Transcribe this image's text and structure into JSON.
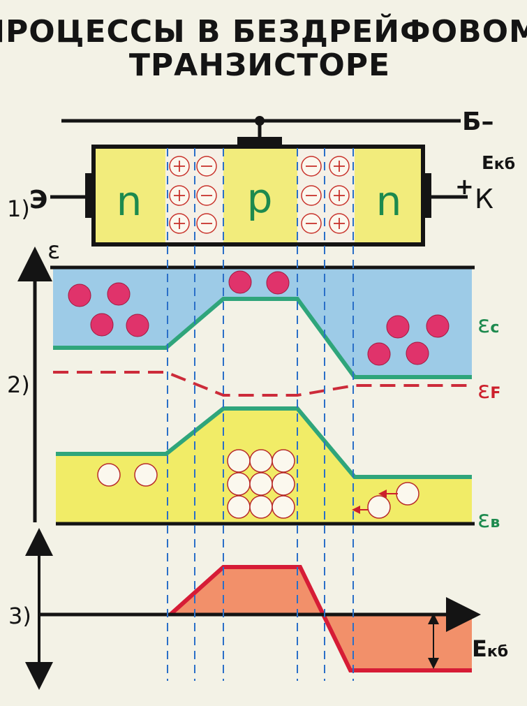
{
  "title": {
    "line1": "ПРОЦЕССЫ В БЕЗДРЕЙФОВОМ",
    "line2": "ТРАНЗИСТОРЕ"
  },
  "section1": {
    "number": "1)",
    "emitter_label": "Э",
    "base_label": "Б–",
    "collector_label": "К",
    "collector_sign": "+",
    "bias_label": "Eкб",
    "regions": [
      "n",
      "p",
      "n"
    ]
  },
  "section2": {
    "number": "2)",
    "energy_axis": "ε",
    "conduction_label": "εc",
    "fermi_label": "εF",
    "valence_label": "εв"
  },
  "section3": {
    "number": "3)",
    "voltage_label": "Eкб"
  },
  "colors": {
    "n_region": "#f2ec7c",
    "conduction_band": "#9dcbe7",
    "valence_band": "#f1ec67",
    "band_edge": "#2fa57b",
    "fermi": "#cc2b3a",
    "electron": "#e0336b",
    "potential_fill": "#f2906a",
    "potential_edge": "#d61c36",
    "guide": "#2a6fc8"
  }
}
